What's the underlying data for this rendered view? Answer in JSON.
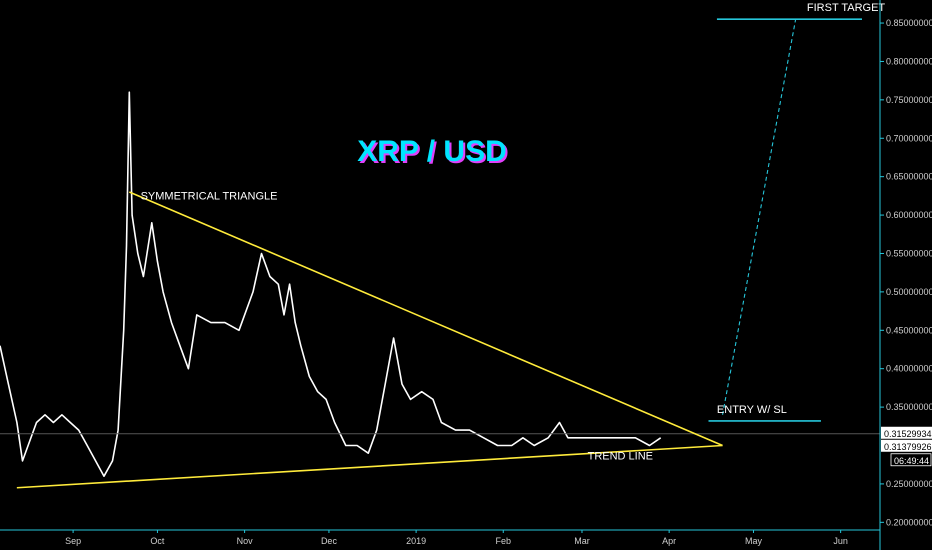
{
  "chart_data": {
    "type": "line",
    "title": "XRP / USD",
    "colors": {
      "background": "#000000",
      "price": "#ffffff",
      "triangle": "#ffeb3b",
      "target": "#26c6da",
      "title_primary": "#00e5ff",
      "title_shadow": "#e040fb",
      "axis": "#26c6da"
    },
    "x_axis": {
      "ticks": [
        {
          "label": "Sep",
          "date": "2018-09-01"
        },
        {
          "label": "Oct",
          "date": "2018-10-01"
        },
        {
          "label": "Nov",
          "date": "2018-11-01"
        },
        {
          "label": "Dec",
          "date": "2018-12-01"
        },
        {
          "label": "2019",
          "date": "2019-01-01"
        },
        {
          "label": "Feb",
          "date": "2019-02-01"
        },
        {
          "label": "Mar",
          "date": "2019-03-01"
        },
        {
          "label": "Apr",
          "date": "2019-04-01"
        },
        {
          "label": "May",
          "date": "2019-05-01"
        },
        {
          "label": "Jun",
          "date": "2019-06-01"
        }
      ],
      "range": [
        "2018-08-06",
        "2019-06-15"
      ]
    },
    "y_axis": {
      "ticks": [
        "0.85000000",
        "0.80000000",
        "0.75000000",
        "0.70000000",
        "0.65000000",
        "0.60000000",
        "0.55000000",
        "0.50000000",
        "0.45000000",
        "0.40000000",
        "0.35000000",
        "0.25000000",
        "0.20000000"
      ],
      "ylim": [
        0.19,
        0.88
      ],
      "position": "right"
    },
    "price_labels": {
      "current": "0.31529934",
      "previous": "0.31379926",
      "countdown": "06:49:44"
    },
    "series": [
      {
        "points": [
          [
            "2018-08-06",
            0.43
          ],
          [
            "2018-08-09",
            0.38
          ],
          [
            "2018-08-12",
            0.33
          ],
          [
            "2018-08-14",
            0.28
          ],
          [
            "2018-08-16",
            0.3
          ],
          [
            "2018-08-19",
            0.33
          ],
          [
            "2018-08-22",
            0.34
          ],
          [
            "2018-08-25",
            0.33
          ],
          [
            "2018-08-28",
            0.34
          ],
          [
            "2018-08-31",
            0.33
          ],
          [
            "2018-09-03",
            0.32
          ],
          [
            "2018-09-06",
            0.3
          ],
          [
            "2018-09-09",
            0.28
          ],
          [
            "2018-09-12",
            0.26
          ],
          [
            "2018-09-15",
            0.28
          ],
          [
            "2018-09-17",
            0.32
          ],
          [
            "2018-09-19",
            0.45
          ],
          [
            "2018-09-20",
            0.56
          ],
          [
            "2018-09-21",
            0.76
          ],
          [
            "2018-09-22",
            0.6
          ],
          [
            "2018-09-24",
            0.55
          ],
          [
            "2018-09-26",
            0.52
          ],
          [
            "2018-09-29",
            0.59
          ],
          [
            "2018-10-01",
            0.54
          ],
          [
            "2018-10-03",
            0.5
          ],
          [
            "2018-10-06",
            0.46
          ],
          [
            "2018-10-09",
            0.43
          ],
          [
            "2018-10-12",
            0.4
          ],
          [
            "2018-10-15",
            0.47
          ],
          [
            "2018-10-20",
            0.46
          ],
          [
            "2018-10-25",
            0.46
          ],
          [
            "2018-10-30",
            0.45
          ],
          [
            "2018-11-04",
            0.5
          ],
          [
            "2018-11-07",
            0.55
          ],
          [
            "2018-11-10",
            0.52
          ],
          [
            "2018-11-13",
            0.51
          ],
          [
            "2018-11-15",
            0.47
          ],
          [
            "2018-11-17",
            0.51
          ],
          [
            "2018-11-19",
            0.46
          ],
          [
            "2018-11-21",
            0.43
          ],
          [
            "2018-11-24",
            0.39
          ],
          [
            "2018-11-27",
            0.37
          ],
          [
            "2018-11-30",
            0.36
          ],
          [
            "2018-12-03",
            0.33
          ],
          [
            "2018-12-07",
            0.3
          ],
          [
            "2018-12-11",
            0.3
          ],
          [
            "2018-12-15",
            0.29
          ],
          [
            "2018-12-18",
            0.32
          ],
          [
            "2018-12-21",
            0.38
          ],
          [
            "2018-12-24",
            0.44
          ],
          [
            "2018-12-27",
            0.38
          ],
          [
            "2018-12-30",
            0.36
          ],
          [
            "2019-01-03",
            0.37
          ],
          [
            "2019-01-07",
            0.36
          ],
          [
            "2019-01-10",
            0.33
          ],
          [
            "2019-01-15",
            0.32
          ],
          [
            "2019-01-20",
            0.32
          ],
          [
            "2019-01-25",
            0.31
          ],
          [
            "2019-01-30",
            0.3
          ],
          [
            "2019-02-04",
            0.3
          ],
          [
            "2019-02-08",
            0.31
          ],
          [
            "2019-02-12",
            0.3
          ],
          [
            "2019-02-17",
            0.31
          ],
          [
            "2019-02-21",
            0.33
          ],
          [
            "2019-02-24",
            0.31
          ],
          [
            "2019-02-28",
            0.31
          ],
          [
            "2019-03-04",
            0.31
          ],
          [
            "2019-03-10",
            0.31
          ],
          [
            "2019-03-15",
            0.31
          ],
          [
            "2019-03-20",
            0.31
          ],
          [
            "2019-03-25",
            0.3
          ],
          [
            "2019-03-29",
            0.31
          ]
        ]
      }
    ],
    "triangle": {
      "upper": [
        [
          "2018-09-21",
          0.63
        ],
        [
          "2019-04-20",
          0.3
        ]
      ],
      "lower": [
        [
          "2018-08-12",
          0.245
        ],
        [
          "2019-04-20",
          0.3
        ]
      ]
    },
    "entry_line": {
      "from": "2019-04-15",
      "to": "2019-05-25",
      "value": 0.332
    },
    "target_line": {
      "from": "2019-04-18",
      "to": "2019-06-15",
      "value": 0.855
    },
    "projection": [
      [
        "2019-04-20",
        0.34
      ],
      [
        "2019-05-16",
        0.855
      ]
    ],
    "current_price_line": 0.3153,
    "annotations": [
      {
        "text": "SYMMETRICAL TRIANGLE",
        "date": "2018-09-25",
        "value": 0.62
      },
      {
        "text": "FIRST TARGET",
        "date": "2019-05-20",
        "value": 0.866
      },
      {
        "text": "ENTRY W/ SL",
        "date": "2019-04-18",
        "value": 0.342
      },
      {
        "text": "TREND LINE",
        "date": "2019-03-03",
        "value": 0.282
      }
    ]
  }
}
